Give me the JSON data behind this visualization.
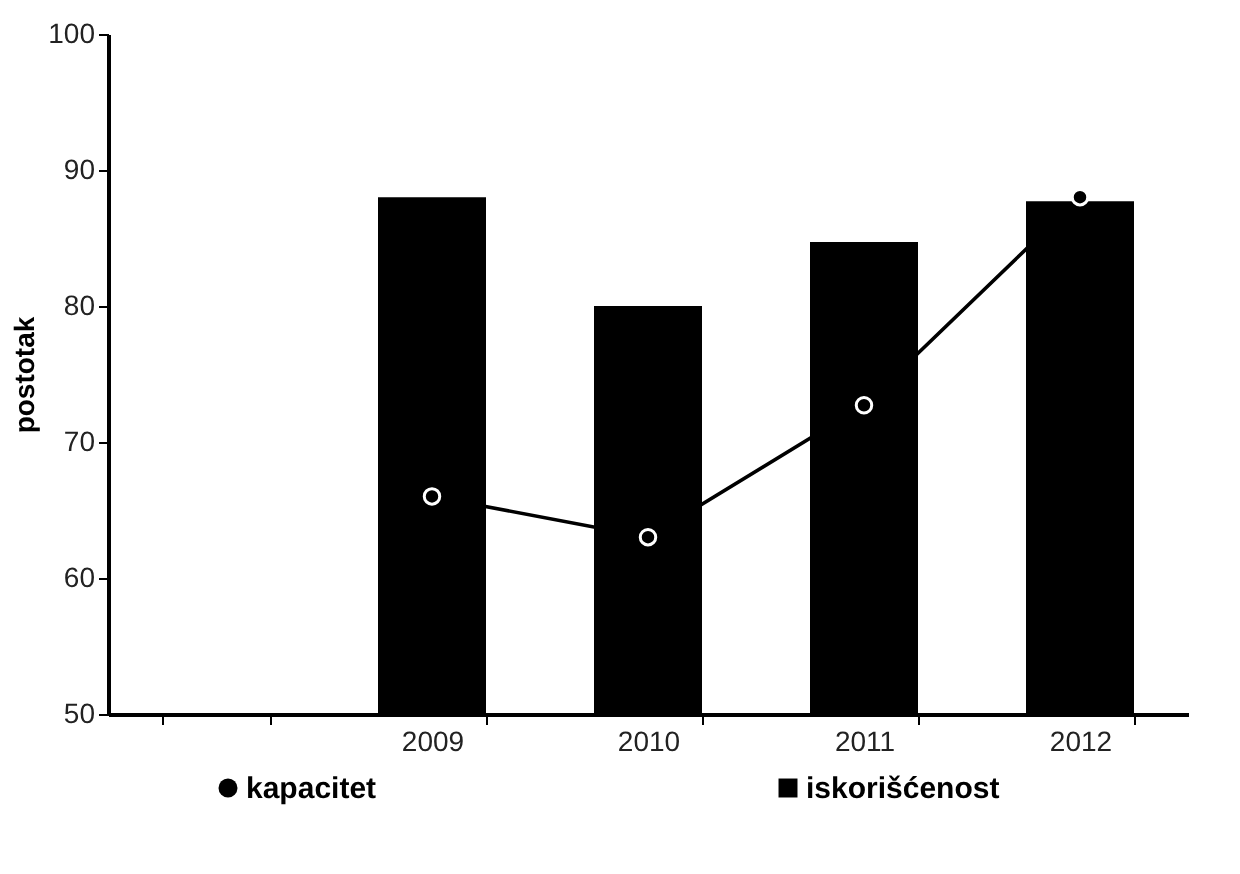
{
  "chart_data": {
    "type": "bar",
    "ylabel": "postotak",
    "categories": [
      null,
      "2009",
      "2010",
      "2011",
      "2012"
    ],
    "series": [
      {
        "name": "kapacitet",
        "type": "line",
        "color": "#000000",
        "marker": "circle",
        "values": [
          null,
          66,
          63,
          72.7,
          88
        ]
      },
      {
        "name": "iskorišćenost",
        "type": "bar",
        "color": "#000000",
        "values": [
          null,
          88,
          80,
          84.7,
          87.7
        ]
      }
    ],
    "ylim": [
      50,
      100
    ],
    "yticks": [
      50,
      60,
      70,
      80,
      90,
      100
    ],
    "grid": false,
    "legend": "bottom"
  }
}
